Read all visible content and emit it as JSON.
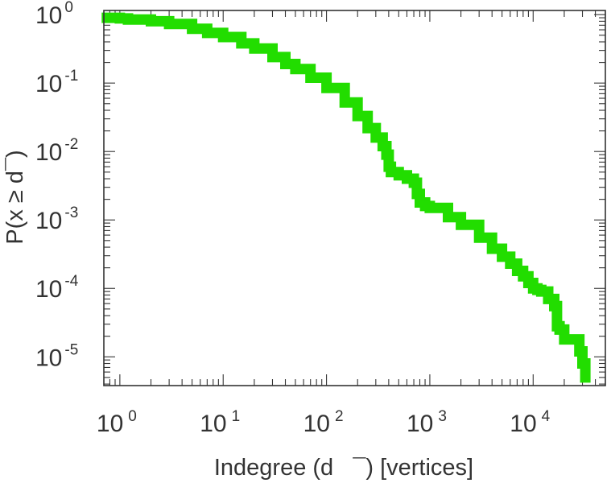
{
  "chart_data": {
    "type": "line",
    "xlabel": "Indegree (d   ¯) [vertices]",
    "ylabel": "P(x ≥ d¯)",
    "x_scale": "log",
    "y_scale": "log",
    "xlim": [
      0.7,
      50000
    ],
    "ylim": [
      3.8e-06,
      1.15
    ],
    "x_ticks": [
      {
        "base": "10",
        "exp": "0",
        "value": 1
      },
      {
        "base": "10",
        "exp": "1",
        "value": 10
      },
      {
        "base": "10",
        "exp": "2",
        "value": 100
      },
      {
        "base": "10",
        "exp": "3",
        "value": 1000
      },
      {
        "base": "10",
        "exp": "4",
        "value": 10000
      }
    ],
    "y_ticks": [
      {
        "base": "10",
        "exp": "0",
        "value": 1
      },
      {
        "base": "10",
        "exp": "-1",
        "value": 0.1
      },
      {
        "base": "10",
        "exp": "-2",
        "value": 0.01
      },
      {
        "base": "10",
        "exp": "-3",
        "value": 0.001
      },
      {
        "base": "10",
        "exp": "-4",
        "value": 0.0001
      },
      {
        "base": "10",
        "exp": "-5",
        "value": 1e-05
      }
    ],
    "grid": false,
    "series": [
      {
        "color": "#22dd00",
        "x": [
          0.75,
          1,
          1.2,
          2,
          3,
          5,
          7,
          10,
          15,
          20,
          30,
          40,
          50,
          70,
          100,
          150,
          200,
          250,
          300,
          350,
          380,
          400,
          420,
          500,
          600,
          700,
          750,
          800,
          900,
          1000,
          1500,
          2000,
          3000,
          4000,
          5000,
          6000,
          7000,
          8000,
          9000,
          10000,
          11000,
          12000,
          14000,
          16000,
          17000,
          18000,
          20000,
          25000,
          28000,
          30000,
          32000
        ],
        "y": [
          0.9,
          0.88,
          0.85,
          0.8,
          0.73,
          0.62,
          0.54,
          0.47,
          0.38,
          0.32,
          0.24,
          0.19,
          0.16,
          0.12,
          0.085,
          0.052,
          0.033,
          0.022,
          0.016,
          0.012,
          0.009,
          0.006,
          0.005,
          0.0045,
          0.004,
          0.0035,
          0.0024,
          0.0018,
          0.0016,
          0.0015,
          0.0011,
          0.00085,
          0.00055,
          0.00038,
          0.00029,
          0.00023,
          0.00018,
          0.00015,
          0.00012,
          0.0001,
          9.5e-05,
          9e-05,
          7e-05,
          5.5e-05,
          2.8e-05,
          2.5e-05,
          1.8e-05,
          1.8e-05,
          1.2e-05,
          8e-06,
          5e-06
        ]
      }
    ]
  }
}
